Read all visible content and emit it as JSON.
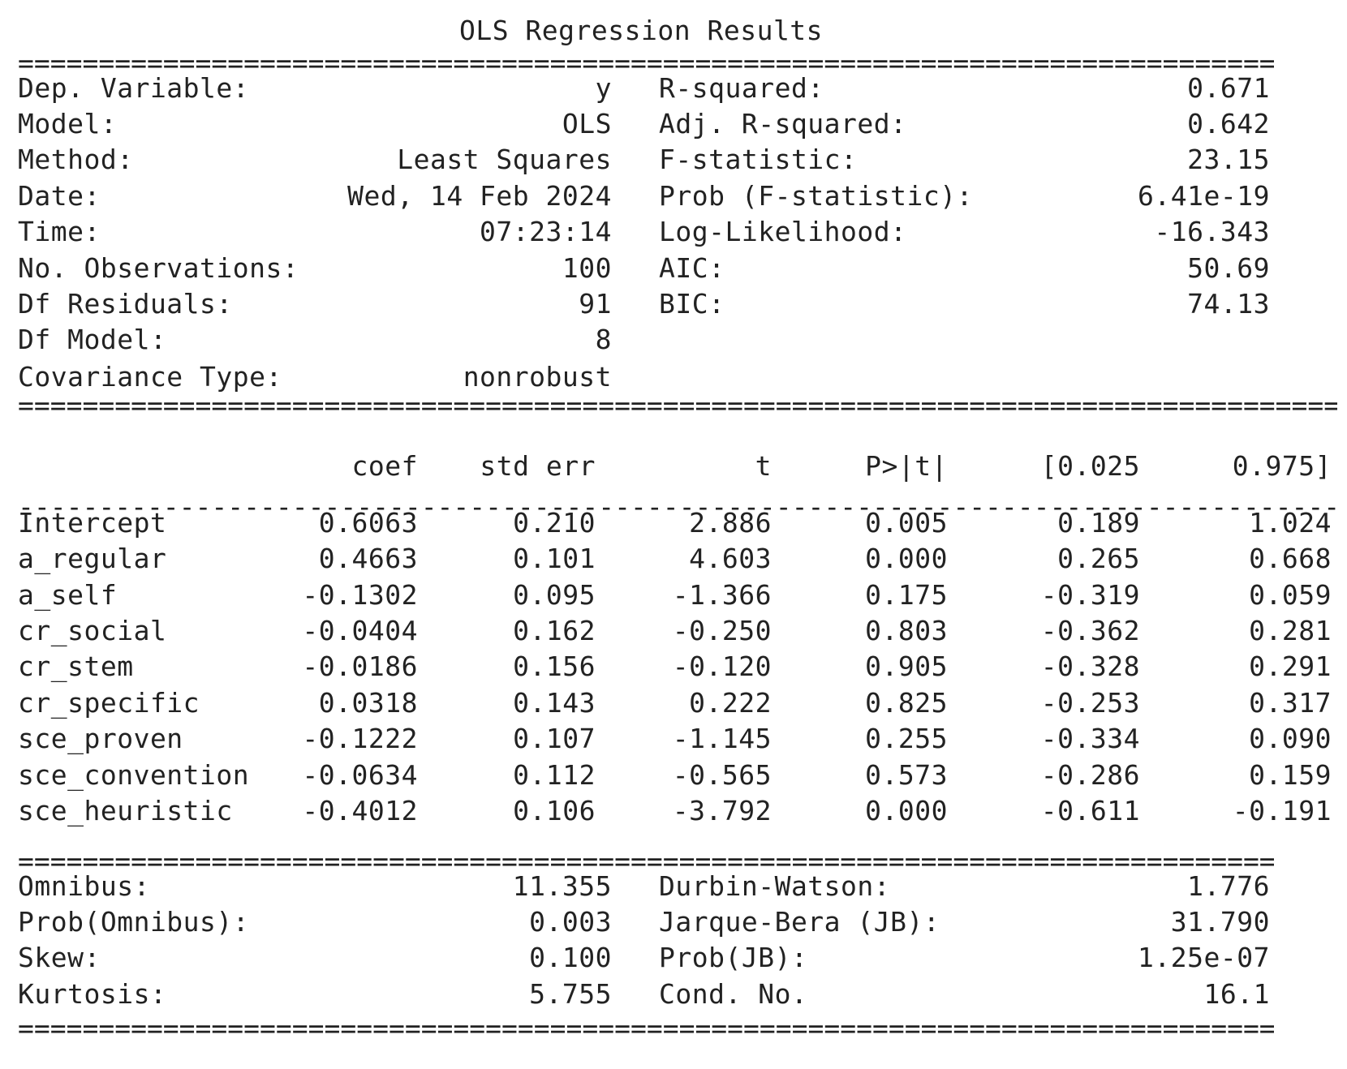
{
  "title": "OLS Regression Results",
  "separators": {
    "double_short": "====================================================================================================",
    "double_long": "==========================================================================================================",
    "single_long": "----------------------------------------------------------------------------------------------------------"
  },
  "model_info": {
    "left": [
      {
        "label": "Dep. Variable:",
        "value": "y"
      },
      {
        "label": "Model:",
        "value": "OLS"
      },
      {
        "label": "Method:",
        "value": "Least Squares"
      },
      {
        "label": "Date:",
        "value": "Wed, 14 Feb 2024"
      },
      {
        "label": "Time:",
        "value": "07:23:14"
      },
      {
        "label": "No. Observations:",
        "value": "100"
      },
      {
        "label": "Df Residuals:",
        "value": "91"
      },
      {
        "label": "Df Model:",
        "value": "8"
      },
      {
        "label": "Covariance Type:",
        "value": "nonrobust"
      }
    ],
    "right": [
      {
        "label": "R-squared:",
        "value": "0.671"
      },
      {
        "label": "Adj. R-squared:",
        "value": "0.642"
      },
      {
        "label": "F-statistic:",
        "value": "23.15"
      },
      {
        "label": "Prob (F-statistic):",
        "value": "6.41e-19"
      },
      {
        "label": "Log-Likelihood:",
        "value": "-16.343"
      },
      {
        "label": "AIC:",
        "value": "50.69"
      },
      {
        "label": "BIC:",
        "value": "74.13"
      }
    ]
  },
  "coef_table": {
    "headers": [
      "coef",
      "std err",
      "t",
      "P>|t|",
      "[0.025",
      "0.975]"
    ],
    "rows": [
      {
        "name": "Intercept",
        "values": [
          "0.6063",
          "0.210",
          "2.886",
          "0.005",
          "0.189",
          "1.024"
        ]
      },
      {
        "name": "a_regular",
        "values": [
          "0.4663",
          "0.101",
          "4.603",
          "0.000",
          "0.265",
          "0.668"
        ]
      },
      {
        "name": "a_self",
        "values": [
          "-0.1302",
          "0.095",
          "-1.366",
          "0.175",
          "-0.319",
          "0.059"
        ]
      },
      {
        "name": "cr_social",
        "values": [
          "-0.0404",
          "0.162",
          "-0.250",
          "0.803",
          "-0.362",
          "0.281"
        ]
      },
      {
        "name": "cr_stem",
        "values": [
          "-0.0186",
          "0.156",
          "-0.120",
          "0.905",
          "-0.328",
          "0.291"
        ]
      },
      {
        "name": "cr_specific",
        "values": [
          "0.0318",
          "0.143",
          "0.222",
          "0.825",
          "-0.253",
          "0.317"
        ]
      },
      {
        "name": "sce_proven",
        "values": [
          "-0.1222",
          "0.107",
          "-1.145",
          "0.255",
          "-0.334",
          "0.090"
        ]
      },
      {
        "name": "sce_convention",
        "values": [
          "-0.0634",
          "0.112",
          "-0.565",
          "0.573",
          "-0.286",
          "0.159"
        ]
      },
      {
        "name": "sce_heuristic",
        "values": [
          "-0.4012",
          "0.106",
          "-3.792",
          "0.000",
          "-0.611",
          "-0.191"
        ]
      }
    ]
  },
  "diagnostics": {
    "left": [
      {
        "label": "Omnibus:",
        "value": "11.355"
      },
      {
        "label": "Prob(Omnibus):",
        "value": "0.003"
      },
      {
        "label": "Skew:",
        "value": "0.100"
      },
      {
        "label": "Kurtosis:",
        "value": "5.755"
      }
    ],
    "right": [
      {
        "label": "Durbin-Watson:",
        "value": "1.776"
      },
      {
        "label": "Jarque-Bera (JB):",
        "value": "31.790"
      },
      {
        "label": "Prob(JB):",
        "value": "1.25e-07"
      },
      {
        "label": "Cond. No.",
        "value": "16.1"
      }
    ]
  }
}
